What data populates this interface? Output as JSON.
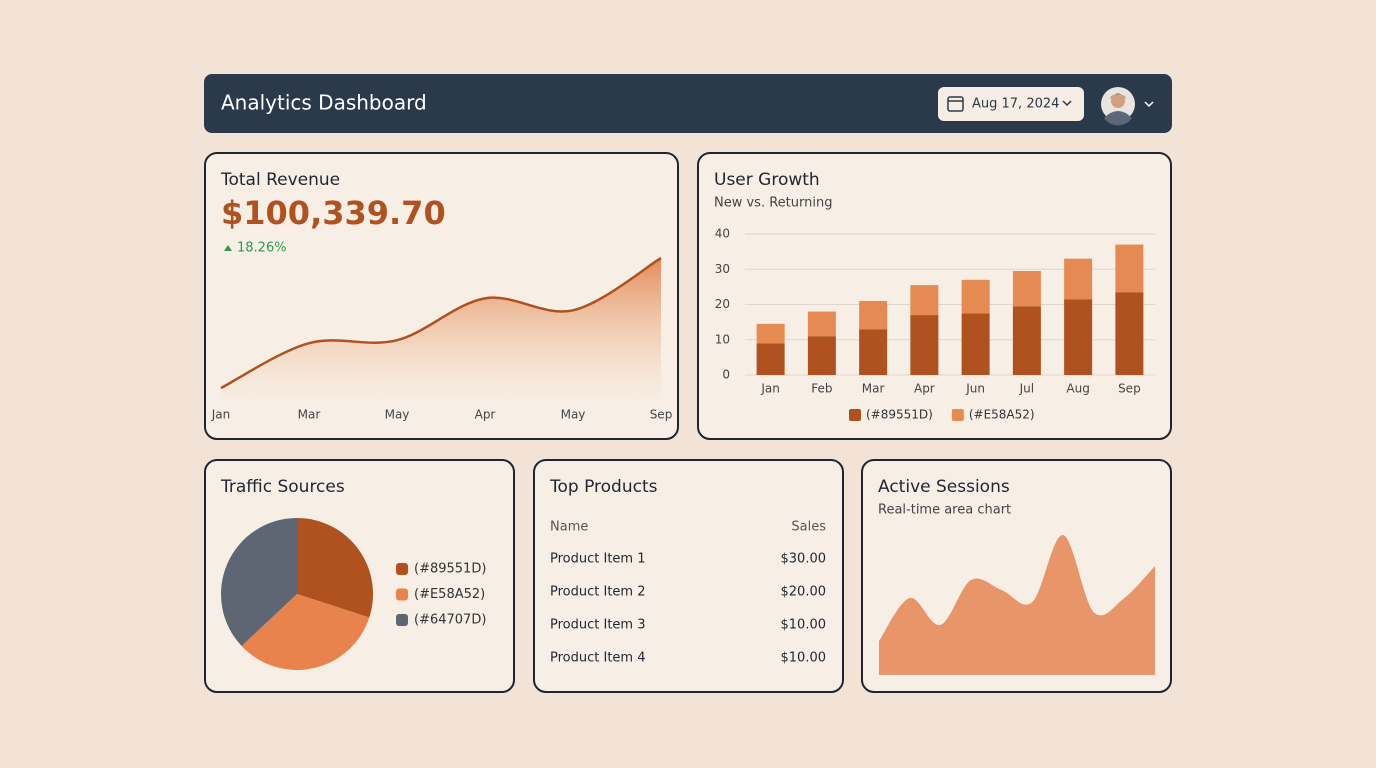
{
  "header": {
    "title": "Analytics Dashboard",
    "date": "Aug 17, 2024"
  },
  "chart_data": [
    {
      "type": "area",
      "title": "Total Revenue",
      "kpi": "$100,339.70",
      "change": "18.26%",
      "categories": [
        "Jan",
        "Mar",
        "May",
        "Apr",
        "May",
        "Sep"
      ],
      "values": [
        8,
        38,
        40,
        68,
        60,
        95
      ],
      "color": "#b0521f"
    },
    {
      "type": "stacked-bar",
      "title": "User Growth",
      "subtitle": "New vs. Returning",
      "categories": [
        "Jan",
        "Feb",
        "Mar",
        "Apr",
        "Jun",
        "Jul",
        "Aug",
        "Sep"
      ],
      "series": [
        {
          "name": "(#89551D)",
          "color": "#b0521f",
          "values": [
            9,
            11,
            13,
            17,
            17.5,
            19.5,
            21.5,
            23.5
          ]
        },
        {
          "name": "(#E58A52)",
          "color": "#e58a52",
          "values": [
            5.5,
            7,
            8,
            8.5,
            9.5,
            10,
            11.5,
            13.5
          ]
        }
      ],
      "ylim": [
        0,
        40
      ],
      "yticks": [
        0,
        10,
        20,
        30,
        40
      ],
      "grid": true
    },
    {
      "type": "pie",
      "title": "Traffic Sources",
      "series": [
        {
          "name": "(#89551D)",
          "color": "#b0521f",
          "values": [
            30
          ]
        },
        {
          "name": "(#E58A52)",
          "color": "#e8834d",
          "values": [
            33
          ]
        },
        {
          "name": "(#64707D)",
          "color": "#5f6673",
          "values": [
            37
          ]
        }
      ]
    },
    {
      "type": "area",
      "title": "Active Sessions",
      "subtitle": "Real-time area chart",
      "values": [
        34,
        77,
        50,
        95,
        85,
        73,
        140,
        63,
        77,
        109
      ],
      "color": "#e8956a"
    }
  ],
  "products": {
    "title": "Top Products",
    "columns": [
      "Name",
      "Sales"
    ],
    "rows": [
      [
        "Product Item 1",
        "$30.00"
      ],
      [
        "Product Item 2",
        "$20.00"
      ],
      [
        "Product Item 3",
        "$10.00"
      ],
      [
        "Product Item 4",
        "$10.00"
      ]
    ]
  }
}
